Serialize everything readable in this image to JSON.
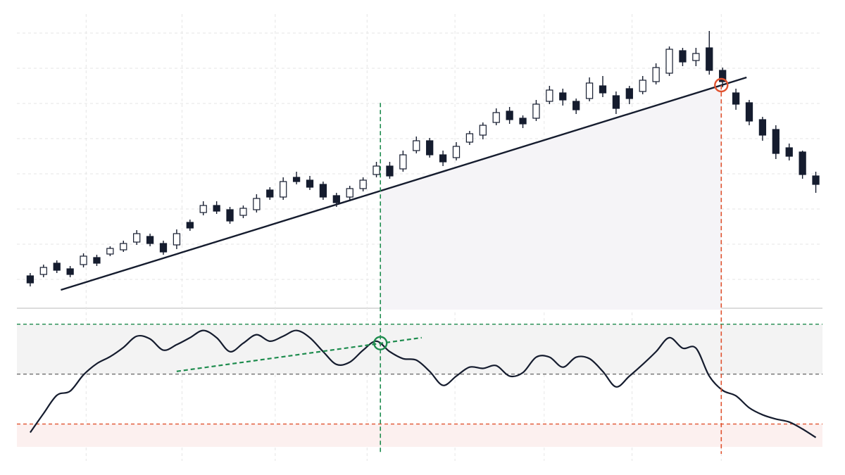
{
  "chart_data": [
    {
      "type": "candlestick",
      "xlim": [
        -1,
        59.5
      ],
      "ylim": [
        0,
        420
      ],
      "grid_x": [
        4.2,
        11.4,
        18.4,
        25.3,
        31.9,
        38.6,
        45.2,
        51.9
      ],
      "grid_y": [
        43,
        93,
        143,
        193,
        243,
        293,
        343,
        393
      ],
      "up_color": "#ffffff",
      "down_color": "#151c2e",
      "line_color": "#151c2e",
      "open": [
        48,
        50,
        66,
        58,
        64,
        74,
        79,
        85,
        96,
        104,
        94,
        92,
        124,
        138,
        148,
        142,
        134,
        142,
        170,
        160,
        188,
        184,
        178,
        162,
        160,
        172,
        192,
        204,
        200,
        226,
        240,
        220,
        216,
        238,
        248,
        266,
        282,
        272,
        272,
        296,
        308,
        296,
        300,
        318,
        304,
        314,
        310,
        324,
        336,
        368,
        354,
        372,
        340,
        308,
        294,
        270,
        256,
        230,
        224,
        190
      ],
      "high": [
        52,
        64,
        70,
        62,
        80,
        78,
        90,
        98,
        113,
        108,
        98,
        114,
        128,
        154,
        154,
        146,
        148,
        164,
        174,
        188,
        196,
        190,
        182,
        166,
        176,
        188,
        210,
        210,
        226,
        246,
        244,
        226,
        238,
        254,
        266,
        286,
        288,
        276,
        298,
        318,
        314,
        300,
        330,
        332,
        310,
        318,
        332,
        350,
        374,
        372,
        372,
        396,
        344,
        314,
        298,
        274,
        262,
        236,
        226,
        196
      ],
      "low": [
        33,
        46,
        52,
        46,
        60,
        62,
        76,
        82,
        92,
        90,
        78,
        86,
        112,
        134,
        136,
        122,
        130,
        138,
        156,
        156,
        178,
        170,
        156,
        146,
        154,
        168,
        188,
        186,
        196,
        222,
        216,
        204,
        212,
        234,
        242,
        262,
        264,
        258,
        268,
        292,
        290,
        278,
        296,
        302,
        278,
        292,
        306,
        320,
        332,
        346,
        346,
        334,
        316,
        284,
        262,
        240,
        214,
        212,
        186,
        166
      ],
      "close": [
        38,
        60,
        56,
        50,
        76,
        66,
        87,
        94,
        108,
        94,
        82,
        108,
        116,
        148,
        140,
        126,
        144,
        158,
        160,
        182,
        182,
        174,
        160,
        152,
        172,
        184,
        204,
        190,
        220,
        240,
        220,
        210,
        232,
        250,
        262,
        280,
        270,
        264,
        292,
        312,
        298,
        284,
        322,
        308,
        286,
        300,
        326,
        344,
        370,
        352,
        364,
        340,
        324,
        292,
        268,
        248,
        222,
        218,
        192,
        178
      ],
      "trendline": {
        "x": [
          2.3,
          53.8
        ],
        "y": [
          28,
          330
        ],
        "color": "#151c2e"
      },
      "highlight": {
        "x": 51.9,
        "y": 319,
        "color": "#e0522f"
      },
      "markers": [
        {
          "x": 26.3,
          "color": "#1e8c4e"
        },
        {
          "x": 51.9,
          "color": "#e0522f"
        }
      ],
      "shade_color": "#f5f4f7"
    },
    {
      "type": "line",
      "xlim": [
        -1,
        59.5
      ],
      "ylim": [
        20,
        75
      ],
      "x": [
        0,
        1,
        2,
        3,
        4,
        5,
        6,
        7,
        8,
        9,
        10,
        11,
        12,
        13,
        14,
        15,
        16,
        17,
        18,
        19,
        20,
        21,
        22,
        23,
        24,
        25,
        26,
        27,
        28,
        29,
        30,
        31,
        32,
        33,
        34,
        35,
        36,
        37,
        38,
        39,
        40,
        41,
        42,
        43,
        44,
        45,
        46,
        47,
        48,
        49,
        50,
        51,
        52,
        53,
        54,
        55,
        56,
        57,
        58,
        59
      ],
      "values": [
        26.6,
        34.2,
        41.5,
        43.2,
        49.7,
        54.2,
        57,
        60.7,
        65.2,
        64.1,
        59.6,
        61.8,
        64.6,
        67.5,
        64.6,
        59,
        62.4,
        65.8,
        63.2,
        65.2,
        67.5,
        64.6,
        59,
        53.9,
        54.8,
        59.6,
        63.2,
        59,
        56.2,
        55.6,
        51.1,
        45.5,
        49.2,
        52.8,
        52.3,
        53.4,
        49.2,
        50.6,
        56.8,
        56.8,
        52.8,
        56.8,
        56.2,
        51.1,
        44.9,
        49.2,
        53.9,
        59,
        64.6,
        60.4,
        60.4,
        49.2,
        43.5,
        41.3,
        36.5,
        33.7,
        32,
        30.8,
        28,
        24.6
      ],
      "color": "#151c2e",
      "levels": [
        {
          "value": 70,
          "color": "#1e8c4e"
        },
        {
          "value": 50,
          "color": "#777777"
        },
        {
          "value": 30,
          "color": "#e0522f"
        }
      ],
      "divergence": {
        "x": [
          11,
          29.4
        ],
        "y": [
          51.1,
          64.6
        ],
        "color": "#1e8c4e"
      },
      "highlight": {
        "x": 26.3,
        "y": 62.4,
        "color": "#1e8c4e"
      },
      "markers": [
        {
          "x": 26.3,
          "color": "#1e8c4e"
        },
        {
          "x": 51.9,
          "color": "#e0522f"
        }
      ],
      "upper_zone_color": "#f3f3f3",
      "lower_zone_color": "#fcf0ef"
    }
  ]
}
